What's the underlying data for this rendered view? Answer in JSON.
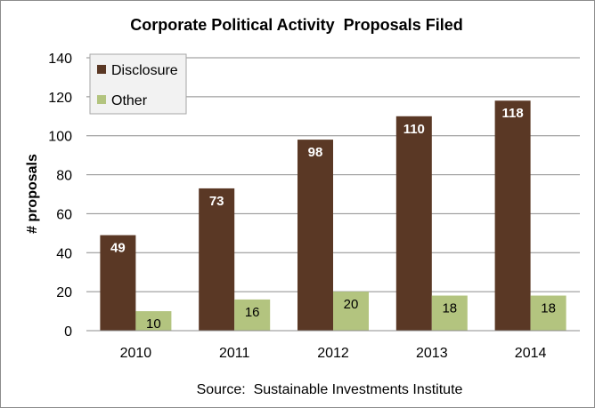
{
  "chart_data": {
    "type": "bar",
    "title": "Corporate Political Activity  Proposals Filed",
    "xlabel": "",
    "ylabel": "# proposals",
    "categories": [
      "2010",
      "2011",
      "2012",
      "2013",
      "2014"
    ],
    "series": [
      {
        "name": "Disclosure",
        "values": [
          49,
          73,
          98,
          110,
          118
        ],
        "color": "#5a3825"
      },
      {
        "name": "Other",
        "values": [
          10,
          16,
          20,
          18,
          18
        ],
        "color": "#b3c47f"
      }
    ],
    "ylim": [
      0,
      140
    ],
    "yticks": [
      0,
      20,
      40,
      60,
      80,
      100,
      120,
      140
    ],
    "grid": true,
    "legend_position": "top-left",
    "data_labels": true,
    "source": "Source:  Sustainable Investments Institute"
  }
}
